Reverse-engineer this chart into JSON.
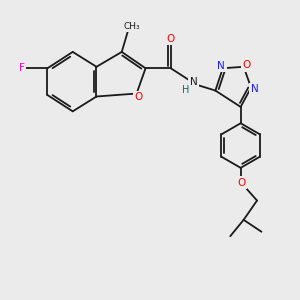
{
  "bg": "#ebebeb",
  "bond_color": "#1a1a1a",
  "bond_lw": 1.3,
  "colors": {
    "N": "#1a1aff",
    "O": "#ff0000",
    "F": "#ff00cc",
    "H": "#007070",
    "C": "#1a1a1a"
  },
  "font": "DejaVu Sans",
  "fs": 7.5
}
